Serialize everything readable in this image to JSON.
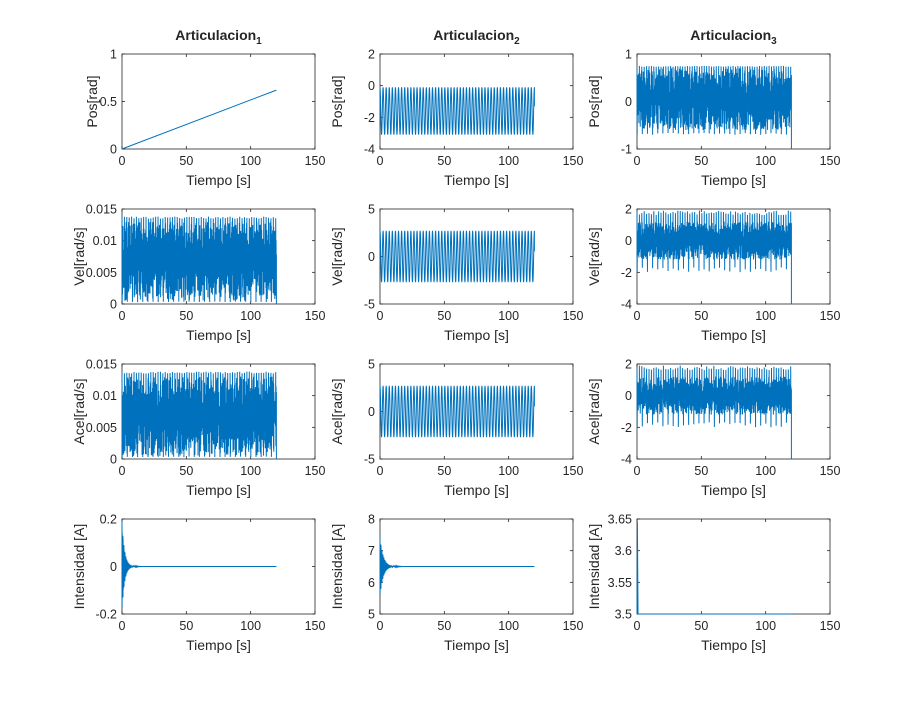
{
  "figure": {
    "line_color": "#0072BD",
    "axis_color": "#262626",
    "background": "#ffffff"
  },
  "chart_data": [
    {
      "type": "line",
      "title_base": "Articulacion",
      "title_sub": "1",
      "xlabel": "Tiempo [s]",
      "ylabel": "Pos[rad]",
      "xlim": [
        0,
        150
      ],
      "ylim": [
        0,
        1
      ],
      "xticks": [
        "0",
        "50",
        "100",
        "150"
      ],
      "yticks": [
        "0",
        "0.5",
        "1"
      ],
      "series": [
        {
          "values": [
            0,
            0.62
          ],
          "x": [
            0,
            120
          ]
        }
      ],
      "signal": "ramp"
    },
    {
      "type": "line",
      "title_base": "Articulacion",
      "title_sub": "2",
      "xlabel": "Tiempo [s]",
      "ylabel": "Pos[rad]",
      "xlim": [
        0,
        150
      ],
      "ylim": [
        -4,
        2
      ],
      "xticks": [
        "0",
        "50",
        "100",
        "150"
      ],
      "yticks": [
        "-4",
        "-2",
        "0",
        "2"
      ],
      "signal": "oscillation",
      "x_range": [
        0,
        120
      ],
      "band": [
        -3.1,
        -0.1
      ],
      "cycles": 50
    },
    {
      "type": "line",
      "title_base": "Articulacion",
      "title_sub": "3",
      "xlabel": "Tiempo [s]",
      "ylabel": "Pos[rad]",
      "xlim": [
        0,
        150
      ],
      "ylim": [
        -1,
        1
      ],
      "xticks": [
        "0",
        "50",
        "100",
        "150"
      ],
      "yticks": [
        "-1",
        "0",
        "1"
      ],
      "signal": "dense",
      "x_range": [
        0,
        120
      ],
      "band": [
        -0.6,
        0.7
      ],
      "peak_min": -0.7,
      "peak_max": 0.75
    },
    {
      "type": "line",
      "xlabel": "Tiempo [s]",
      "ylabel": "Vel[rad/s]",
      "xlim": [
        0,
        150
      ],
      "ylim": [
        0,
        0.015
      ],
      "xticks": [
        "0",
        "50",
        "100",
        "150"
      ],
      "yticks": [
        "0",
        "0.005",
        "0.01",
        "0.015"
      ],
      "signal": "dense_pos",
      "x_range": [
        0,
        120
      ],
      "band": [
        0.0005,
        0.013
      ],
      "peak_min": 0.0003,
      "peak_max": 0.0138
    },
    {
      "type": "line",
      "xlabel": "Tiempo [s]",
      "ylabel": "Vel[rad/s]",
      "xlim": [
        0,
        150
      ],
      "ylim": [
        -5,
        5
      ],
      "xticks": [
        "0",
        "50",
        "100",
        "150"
      ],
      "yticks": [
        "-5",
        "0",
        "5"
      ],
      "signal": "oscillation",
      "x_range": [
        0,
        120
      ],
      "band": [
        -2.7,
        2.7
      ],
      "cycles": 50
    },
    {
      "type": "line",
      "xlabel": "Tiempo [s]",
      "ylabel": "Vel[rad/s]",
      "xlim": [
        0,
        150
      ],
      "ylim": [
        -4,
        2
      ],
      "xticks": [
        "0",
        "50",
        "100",
        "150"
      ],
      "yticks": [
        "-4",
        "-2",
        "0",
        "2"
      ],
      "signal": "dense",
      "x_range": [
        0,
        120
      ],
      "band": [
        -1.2,
        1.2
      ],
      "peak_min": -2.0,
      "peak_max": 1.9
    },
    {
      "type": "line",
      "xlabel": "Tiempo [s]",
      "ylabel": "Acel[rad/s]",
      "xlim": [
        0,
        150
      ],
      "ylim": [
        0,
        0.015
      ],
      "xticks": [
        "0",
        "50",
        "100",
        "150"
      ],
      "yticks": [
        "0",
        "0.005",
        "0.01",
        "0.015"
      ],
      "signal": "dense_pos",
      "x_range": [
        0,
        120
      ],
      "band": [
        0.0005,
        0.013
      ],
      "peak_min": 0.0003,
      "peak_max": 0.0138
    },
    {
      "type": "line",
      "xlabel": "Tiempo [s]",
      "ylabel": "Acel[rad/s]",
      "xlim": [
        0,
        150
      ],
      "ylim": [
        -5,
        5
      ],
      "xticks": [
        "0",
        "50",
        "100",
        "150"
      ],
      "yticks": [
        "-5",
        "0",
        "5"
      ],
      "signal": "oscillation",
      "x_range": [
        0,
        120
      ],
      "band": [
        -2.7,
        2.7
      ],
      "cycles": 50
    },
    {
      "type": "line",
      "xlabel": "Tiempo [s]",
      "ylabel": "Acel[rad/s]",
      "xlim": [
        0,
        150
      ],
      "ylim": [
        -4,
        2
      ],
      "xticks": [
        "0",
        "50",
        "100",
        "150"
      ],
      "yticks": [
        "-4",
        "-2",
        "0",
        "2"
      ],
      "signal": "dense",
      "x_range": [
        0,
        120
      ],
      "band": [
        -1.2,
        1.2
      ],
      "peak_min": -2.0,
      "peak_max": 1.9
    },
    {
      "type": "line",
      "xlabel": "Tiempo [s]",
      "ylabel": "Intensidad [A]",
      "xlim": [
        0,
        150
      ],
      "ylim": [
        -0.2,
        0.2
      ],
      "xticks": [
        "0",
        "50",
        "100",
        "150"
      ],
      "yticks": [
        "-0.2",
        "0",
        "0.2"
      ],
      "signal": "decay",
      "x_range": [
        0,
        120
      ],
      "steady": 0,
      "amp0": 0.19,
      "tau": 2.0
    },
    {
      "type": "line",
      "xlabel": "Tiempo [s]",
      "ylabel": "Intensidad [A]",
      "xlim": [
        0,
        150
      ],
      "ylim": [
        5,
        8
      ],
      "xticks": [
        "0",
        "50",
        "100",
        "150"
      ],
      "yticks": [
        "5",
        "6",
        "7",
        "8"
      ],
      "signal": "decay",
      "x_range": [
        0,
        120
      ],
      "steady": 6.5,
      "amp0": 0.95,
      "tau": 2.5
    },
    {
      "type": "line",
      "xlabel": "Tiempo [s]",
      "ylabel": "Intensidad [A]",
      "xlim": [
        0,
        150
      ],
      "ylim": [
        3.5,
        3.65
      ],
      "xticks": [
        "0",
        "50",
        "100",
        "150"
      ],
      "yticks": [
        "3.5",
        "3.55",
        "3.6",
        "3.65"
      ],
      "signal": "spike",
      "x_range": [
        0,
        120
      ],
      "steady": 3.5,
      "peak": 3.645
    }
  ]
}
